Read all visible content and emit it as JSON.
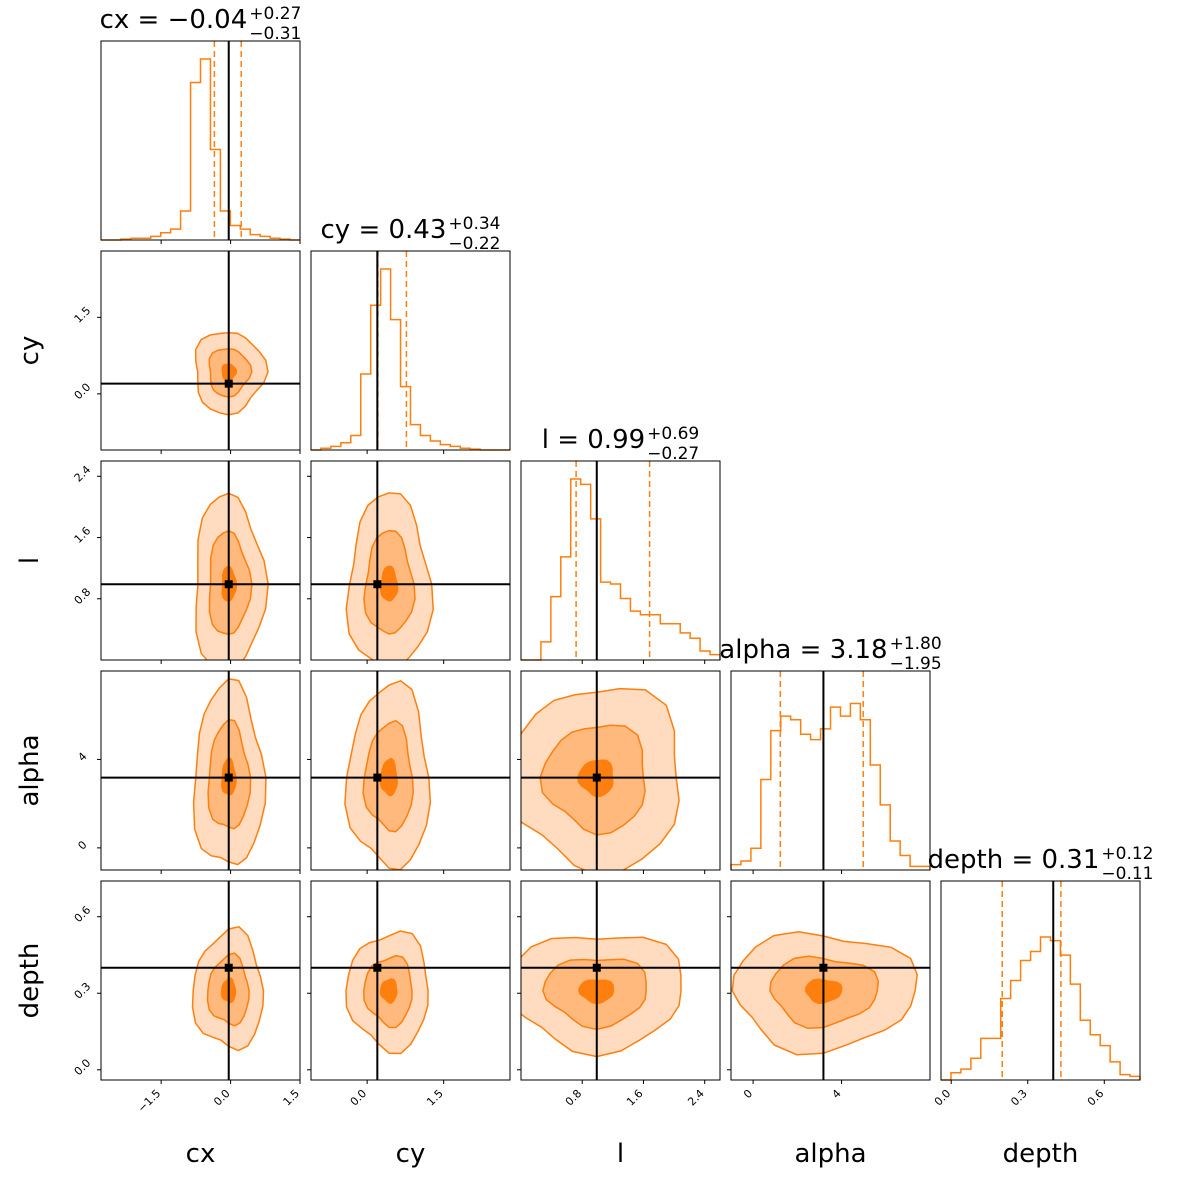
{
  "chart_data": {
    "type": "corner",
    "colors": {
      "contour": "#ff7f0e",
      "level1": "#ffdcbf",
      "level2": "#ffb97d",
      "level3": "#ff7f0e",
      "truth": "#000000"
    },
    "parameters": [
      {
        "name": "cx",
        "label": "cx",
        "title": {
          "prefix": "cx = ",
          "value": "−0.04",
          "plus": "+0.27",
          "minus": "−0.31"
        },
        "range": [
          -2.8,
          1.5
        ],
        "ticks": [
          {
            "v": -1.5,
            "label": "−1.5"
          },
          {
            "v": 0.0,
            "label": "0.0"
          },
          {
            "v": 1.5,
            "label": "1.5"
          }
        ],
        "truth": -0.04,
        "quantiles": [
          -0.35,
          0.23
        ],
        "median": -0.04,
        "spread": 0.33
      },
      {
        "name": "cy",
        "label": "cy",
        "title": {
          "prefix": "cy = ",
          "value": "0.43",
          "plus": "+0.34",
          "minus": "−0.22"
        },
        "range": [
          -1.1,
          2.8
        ],
        "ticks": [
          {
            "v": 0.0,
            "label": "0.0"
          },
          {
            "v": 1.5,
            "label": "1.5"
          }
        ],
        "truth": 0.2,
        "quantiles": [
          0.21,
          0.77
        ],
        "median": 0.43,
        "spread": 0.35
      },
      {
        "name": "l",
        "label": "l",
        "title": {
          "prefix": "l = ",
          "value": "0.99",
          "plus": "+0.69",
          "minus": "−0.27"
        },
        "range": [
          0.0,
          2.6
        ],
        "ticks": [
          {
            "v": 0.8,
            "label": "0.8"
          },
          {
            "v": 1.6,
            "label": "1.6"
          },
          {
            "v": 2.4,
            "label": "2.4"
          }
        ],
        "truth": 0.99,
        "quantiles": [
          0.72,
          1.68
        ],
        "median": 0.99,
        "spread": 0.5
      },
      {
        "name": "alpha",
        "label": "alpha",
        "title": {
          "prefix": "alpha = ",
          "value": "3.18",
          "plus": "+1.80",
          "minus": "−1.95"
        },
        "range": [
          -1.0,
          8.0
        ],
        "ticks": [
          {
            "v": 0,
            "label": "0"
          },
          {
            "v": 4,
            "label": "4"
          }
        ],
        "truth": 3.18,
        "quantiles": [
          1.23,
          4.98
        ],
        "median": 3.18,
        "spread": 1.8
      },
      {
        "name": "depth",
        "label": "depth",
        "title": {
          "prefix": "depth = ",
          "value": "0.31",
          "plus": "+0.12",
          "minus": "−0.11"
        },
        "range": [
          -0.04,
          0.74
        ],
        "ticks": [
          {
            "v": 0.0,
            "label": "0.0"
          },
          {
            "v": 0.3,
            "label": "0.3"
          },
          {
            "v": 0.6,
            "label": "0.6"
          }
        ],
        "truth": 0.4,
        "quantiles": [
          0.2,
          0.43
        ],
        "median": 0.31,
        "spread": 0.1
      }
    ],
    "histograms": {
      "cx": [
        0,
        0,
        0.005,
        0.01,
        0.01,
        0.02,
        0.04,
        0.06,
        0.16,
        0.87,
        1.0,
        0.5,
        0.16,
        0.08,
        0.06,
        0.03,
        0.02,
        0.01,
        0.005,
        0
      ],
      "cy": [
        0,
        0.01,
        0.02,
        0.04,
        0.08,
        0.42,
        0.8,
        1.0,
        0.72,
        0.35,
        0.14,
        0.08,
        0.05,
        0.03,
        0.02,
        0.01,
        0.005,
        0,
        0,
        0
      ],
      "l": [
        0,
        0,
        0.1,
        0.35,
        0.57,
        1.0,
        0.97,
        0.78,
        0.43,
        0.42,
        0.34,
        0.27,
        0.25,
        0.25,
        0.2,
        0.2,
        0.15,
        0.12,
        0.05,
        0.03
      ],
      "alpha": [
        0.03,
        0.05,
        0.12,
        0.5,
        0.77,
        0.85,
        0.83,
        0.75,
        0.72,
        0.78,
        0.9,
        0.85,
        0.92,
        0.83,
        0.58,
        0.36,
        0.16,
        0.08,
        0.02,
        0.02
      ],
      "depth": [
        0,
        0.04,
        0.06,
        0.12,
        0.23,
        0.23,
        0.45,
        0.55,
        0.66,
        0.71,
        0.79,
        0.77,
        0.69,
        0.53,
        0.33,
        0.25,
        0.19,
        0.1,
        0.03,
        0.02
      ]
    }
  }
}
